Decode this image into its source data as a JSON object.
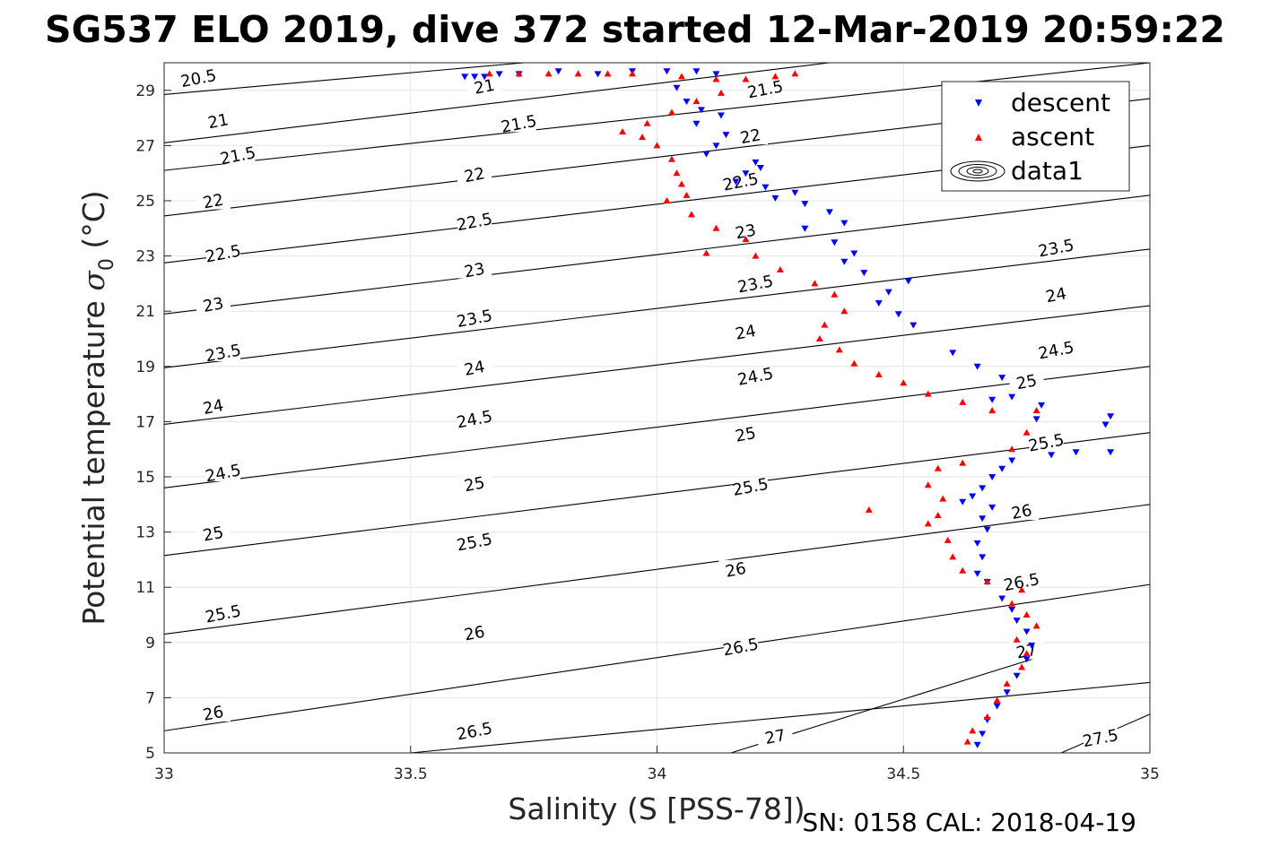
{
  "chart_data": {
    "type": "scatter",
    "title": "SG537 ELO 2019, dive 372 started 12-Mar-2019 20:59:22",
    "xlabel": "Salinity (S [PSS-78])",
    "ylabel": "Potential temperature σ₀ (°C)",
    "ylabel_main": "Potential temperature ",
    "ylabel_sigma": "σ",
    "ylabel_sub": "0",
    "ylabel_tail": " (°C)",
    "footer": "SN: 0158  CAL: 2018-04-19",
    "xlim": [
      33,
      35
    ],
    "ylim": [
      5,
      30
    ],
    "xticks": [
      "33",
      "33.5",
      "34",
      "34.5",
      "35"
    ],
    "yticks": [
      "5",
      "7",
      "9",
      "11",
      "13",
      "15",
      "17",
      "19",
      "21",
      "23",
      "25",
      "27",
      "29"
    ],
    "grid": true,
    "legend_position": "top-right",
    "legend": [
      "descent",
      "ascent",
      "data1"
    ],
    "colors": {
      "descent": "#0000ff",
      "ascent": "#ff0000",
      "contour": "#000000",
      "grid": "#e6e6e6"
    },
    "series": [
      {
        "name": "descent",
        "marker": "triangle-down",
        "points": [
          [
            33.61,
            29.5
          ],
          [
            33.63,
            29.5
          ],
          [
            33.65,
            29.5
          ],
          [
            33.68,
            29.6
          ],
          [
            33.72,
            29.6
          ],
          [
            33.8,
            29.7
          ],
          [
            33.88,
            29.6
          ],
          [
            33.95,
            29.7
          ],
          [
            34.02,
            29.7
          ],
          [
            34.08,
            29.7
          ],
          [
            34.12,
            29.6
          ],
          [
            34.04,
            29.1
          ],
          [
            34.06,
            28.6
          ],
          [
            34.09,
            28.3
          ],
          [
            34.13,
            28.1
          ],
          [
            34.08,
            27.8
          ],
          [
            34.14,
            27.4
          ],
          [
            34.12,
            27.0
          ],
          [
            34.1,
            26.7
          ],
          [
            34.2,
            26.4
          ],
          [
            34.21,
            26.2
          ],
          [
            34.18,
            26.0
          ],
          [
            34.16,
            25.7
          ],
          [
            34.22,
            25.5
          ],
          [
            34.28,
            25.3
          ],
          [
            34.24,
            25.1
          ],
          [
            34.3,
            24.9
          ],
          [
            34.35,
            24.6
          ],
          [
            34.38,
            24.2
          ],
          [
            34.3,
            24.0
          ],
          [
            34.36,
            23.5
          ],
          [
            34.4,
            23.1
          ],
          [
            34.38,
            22.8
          ],
          [
            34.42,
            22.4
          ],
          [
            34.51,
            22.1
          ],
          [
            34.47,
            21.7
          ],
          [
            34.45,
            21.3
          ],
          [
            34.49,
            20.9
          ],
          [
            34.52,
            20.5
          ],
          [
            34.6,
            19.5
          ],
          [
            34.65,
            19.0
          ],
          [
            34.7,
            18.6
          ],
          [
            34.72,
            17.9
          ],
          [
            34.68,
            17.8
          ],
          [
            34.78,
            17.6
          ],
          [
            34.77,
            17.1
          ],
          [
            34.92,
            17.2
          ],
          [
            34.91,
            16.9
          ],
          [
            34.85,
            15.9
          ],
          [
            34.92,
            15.9
          ],
          [
            34.8,
            15.8
          ],
          [
            34.72,
            15.6
          ],
          [
            34.7,
            15.3
          ],
          [
            34.68,
            15.0
          ],
          [
            34.66,
            14.6
          ],
          [
            34.64,
            14.3
          ],
          [
            34.62,
            14.1
          ],
          [
            34.68,
            13.9
          ],
          [
            34.66,
            13.5
          ],
          [
            34.67,
            13.1
          ],
          [
            34.65,
            12.6
          ],
          [
            34.66,
            12.1
          ],
          [
            34.65,
            11.5
          ],
          [
            34.67,
            11.2
          ],
          [
            34.7,
            10.6
          ],
          [
            34.72,
            10.2
          ],
          [
            34.73,
            9.8
          ],
          [
            34.75,
            9.4
          ],
          [
            34.76,
            8.9
          ],
          [
            34.75,
            8.4
          ],
          [
            34.73,
            7.8
          ],
          [
            34.71,
            7.2
          ],
          [
            34.69,
            6.7
          ],
          [
            34.67,
            6.2
          ],
          [
            34.66,
            5.7
          ],
          [
            34.65,
            5.3
          ]
        ]
      },
      {
        "name": "ascent",
        "marker": "triangle-up",
        "points": [
          [
            33.66,
            29.6
          ],
          [
            33.72,
            29.6
          ],
          [
            33.78,
            29.6
          ],
          [
            33.84,
            29.6
          ],
          [
            33.9,
            29.6
          ],
          [
            33.95,
            29.6
          ],
          [
            34.05,
            29.5
          ],
          [
            34.12,
            29.4
          ],
          [
            34.18,
            29.4
          ],
          [
            34.24,
            29.5
          ],
          [
            34.28,
            29.6
          ],
          [
            34.13,
            28.9
          ],
          [
            34.08,
            28.6
          ],
          [
            34.03,
            28.2
          ],
          [
            33.98,
            27.8
          ],
          [
            33.93,
            27.5
          ],
          [
            33.97,
            27.3
          ],
          [
            34.0,
            27.0
          ],
          [
            34.03,
            26.5
          ],
          [
            34.04,
            26.0
          ],
          [
            34.05,
            25.6
          ],
          [
            34.06,
            25.2
          ],
          [
            34.02,
            25.0
          ],
          [
            34.07,
            24.5
          ],
          [
            34.12,
            24.0
          ],
          [
            34.18,
            23.6
          ],
          [
            34.1,
            23.1
          ],
          [
            34.2,
            23.0
          ],
          [
            34.25,
            22.5
          ],
          [
            34.32,
            22.0
          ],
          [
            34.36,
            21.6
          ],
          [
            34.38,
            21.0
          ],
          [
            34.34,
            20.5
          ],
          [
            34.33,
            20.0
          ],
          [
            34.37,
            19.6
          ],
          [
            34.4,
            19.1
          ],
          [
            34.45,
            18.7
          ],
          [
            34.5,
            18.4
          ],
          [
            34.55,
            18.0
          ],
          [
            34.62,
            17.7
          ],
          [
            34.68,
            17.4
          ],
          [
            34.77,
            17.4
          ],
          [
            34.75,
            16.6
          ],
          [
            34.72,
            16.0
          ],
          [
            34.62,
            15.5
          ],
          [
            34.57,
            15.3
          ],
          [
            34.55,
            14.7
          ],
          [
            34.58,
            14.2
          ],
          [
            34.57,
            13.6
          ],
          [
            34.55,
            13.3
          ],
          [
            34.59,
            12.7
          ],
          [
            34.6,
            12.1
          ],
          [
            34.62,
            11.6
          ],
          [
            34.67,
            11.2
          ],
          [
            34.74,
            10.9
          ],
          [
            34.72,
            10.4
          ],
          [
            34.75,
            10.0
          ],
          [
            34.77,
            9.6
          ],
          [
            34.73,
            9.1
          ],
          [
            34.75,
            8.6
          ],
          [
            34.74,
            8.1
          ],
          [
            34.71,
            7.5
          ],
          [
            34.69,
            6.9
          ],
          [
            34.67,
            6.3
          ],
          [
            34.64,
            5.8
          ],
          [
            34.63,
            5.4
          ],
          [
            34.43,
            13.8
          ]
        ]
      }
    ],
    "contours": [
      {
        "label": "20.5",
        "x": [
          33,
          33.73
        ],
        "y": [
          28.85,
          30.0
        ]
      },
      {
        "label": "21",
        "x": [
          33,
          34.35
        ],
        "y": [
          27.1,
          30.0
        ]
      },
      {
        "label": "21.5",
        "x": [
          33,
          35
        ],
        "y": [
          26.1,
          30.4
        ]
      },
      {
        "label": "22",
        "x": [
          33,
          35
        ],
        "y": [
          24.45,
          28.7
        ]
      },
      {
        "label": "22.5",
        "x": [
          33,
          35
        ],
        "y": [
          22.75,
          27.0
        ]
      },
      {
        "label": "23",
        "x": [
          33,
          35
        ],
        "y": [
          20.9,
          25.2
        ]
      },
      {
        "label": "23.5",
        "x": [
          33,
          35
        ],
        "y": [
          18.95,
          23.25
        ]
      },
      {
        "label": "24",
        "x": [
          33,
          35
        ],
        "y": [
          16.9,
          21.2
        ]
      },
      {
        "label": "24.5",
        "x": [
          33,
          35
        ],
        "y": [
          14.6,
          19.0
        ]
      },
      {
        "label": "25",
        "x": [
          33,
          35
        ],
        "y": [
          12.15,
          16.6
        ]
      },
      {
        "label": "25.5",
        "x": [
          33,
          35
        ],
        "y": [
          9.3,
          14.0
        ]
      },
      {
        "label": "26",
        "x": [
          33,
          35
        ],
        "y": [
          5.8,
          11.1
        ]
      },
      {
        "label": "26.5",
        "x": [
          33.5,
          35
        ],
        "y": [
          5.0,
          7.55
        ]
      },
      {
        "label": "27",
        "x": [
          34.15,
          34.78
        ],
        "y": [
          5.0,
          8.5
        ]
      },
      {
        "label": "27.5",
        "x": [
          34.82,
          35
        ],
        "y": [
          5.0,
          6.4
        ]
      }
    ],
    "contour_labels": [
      {
        "label": "20.5",
        "x": 33.07,
        "y": 29.4
      },
      {
        "label": "21",
        "x": 33.65,
        "y": 29.1
      },
      {
        "label": "21",
        "x": 33.11,
        "y": 27.85
      },
      {
        "label": "21.5",
        "x": 34.22,
        "y": 29.0
      },
      {
        "label": "21.5",
        "x": 33.72,
        "y": 27.75
      },
      {
        "label": "21.5",
        "x": 33.15,
        "y": 26.6
      },
      {
        "label": "22",
        "x": 34.19,
        "y": 27.3
      },
      {
        "label": "22",
        "x": 33.63,
        "y": 25.9
      },
      {
        "label": "22",
        "x": 33.1,
        "y": 24.95
      },
      {
        "label": "22.5",
        "x": 34.17,
        "y": 25.65
      },
      {
        "label": "22.5",
        "x": 33.63,
        "y": 24.2
      },
      {
        "label": "22.5",
        "x": 33.12,
        "y": 23.05
      },
      {
        "label": "23",
        "x": 34.18,
        "y": 23.85
      },
      {
        "label": "23",
        "x": 33.63,
        "y": 22.45
      },
      {
        "label": "23",
        "x": 33.1,
        "y": 21.2
      },
      {
        "label": "23.5",
        "x": 34.81,
        "y": 23.25
      },
      {
        "label": "23.5",
        "x": 34.2,
        "y": 21.95
      },
      {
        "label": "23.5",
        "x": 33.63,
        "y": 20.7
      },
      {
        "label": "23.5",
        "x": 33.12,
        "y": 19.45
      },
      {
        "label": "24",
        "x": 34.81,
        "y": 21.55
      },
      {
        "label": "24",
        "x": 34.18,
        "y": 20.2
      },
      {
        "label": "24",
        "x": 33.63,
        "y": 18.9
      },
      {
        "label": "24",
        "x": 33.1,
        "y": 17.5
      },
      {
        "label": "24.5",
        "x": 34.81,
        "y": 19.55
      },
      {
        "label": "24.5",
        "x": 34.2,
        "y": 18.6
      },
      {
        "label": "24.5",
        "x": 33.63,
        "y": 17.05
      },
      {
        "label": "24.5",
        "x": 33.12,
        "y": 15.1
      },
      {
        "label": "25",
        "x": 34.75,
        "y": 18.4
      },
      {
        "label": "25",
        "x": 34.18,
        "y": 16.5
      },
      {
        "label": "25",
        "x": 33.63,
        "y": 14.7
      },
      {
        "label": "25",
        "x": 33.1,
        "y": 12.9
      },
      {
        "label": "25.5",
        "x": 34.79,
        "y": 16.2
      },
      {
        "label": "25.5",
        "x": 34.19,
        "y": 14.6
      },
      {
        "label": "25.5",
        "x": 33.63,
        "y": 12.6
      },
      {
        "label": "25.5",
        "x": 33.12,
        "y": 10.0
      },
      {
        "label": "26",
        "x": 34.74,
        "y": 13.7
      },
      {
        "label": "26",
        "x": 34.16,
        "y": 11.6
      },
      {
        "label": "26",
        "x": 33.63,
        "y": 9.3
      },
      {
        "label": "26",
        "x": 33.1,
        "y": 6.4
      },
      {
        "label": "26.5",
        "x": 34.74,
        "y": 11.15
      },
      {
        "label": "26.5",
        "x": 34.17,
        "y": 8.8
      },
      {
        "label": "26.5",
        "x": 33.63,
        "y": 5.75
      },
      {
        "label": "27",
        "x": 34.75,
        "y": 8.65
      },
      {
        "label": "27",
        "x": 34.24,
        "y": 5.55
      },
      {
        "label": "27.5",
        "x": 34.9,
        "y": 5.5
      }
    ]
  }
}
